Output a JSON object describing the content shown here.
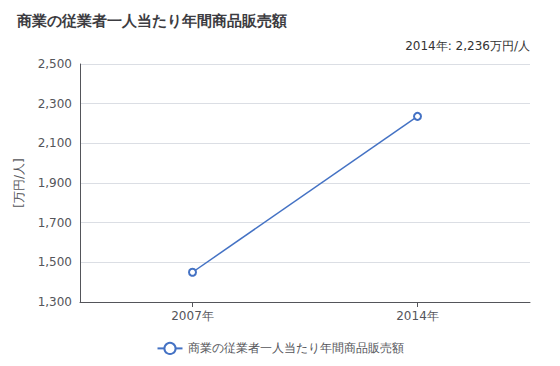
{
  "chart_data": {
    "type": "line",
    "title": "商業の従業者一人当たり年間商品販売額",
    "ylabel": "[万円/人]",
    "annotation": "2014年: 2,236万円/人",
    "x": [
      2007,
      2014
    ],
    "series": [
      {
        "name": "商業の従業者一人当たり年間商品販売額",
        "color": "#4472C4",
        "marker": "open_circle",
        "values": [
          1450,
          2236
        ]
      }
    ],
    "xlim": [
      2003.5,
      2017.5
    ],
    "xticks": [
      {
        "value": 2007,
        "label": "2007年"
      },
      {
        "value": 2014,
        "label": "2014年"
      }
    ],
    "ylim": [
      1300,
      2500
    ],
    "yticks": [
      {
        "value": 1300,
        "label": "1,300"
      },
      {
        "value": 1500,
        "label": "1,500"
      },
      {
        "value": 1700,
        "label": "1,700"
      },
      {
        "value": 1900,
        "label": "1,900"
      },
      {
        "value": 2100,
        "label": "2,100"
      },
      {
        "value": 2300,
        "label": "2,300"
      },
      {
        "value": 2500,
        "label": "2,500"
      }
    ],
    "grid": true,
    "legend": "bottom"
  }
}
